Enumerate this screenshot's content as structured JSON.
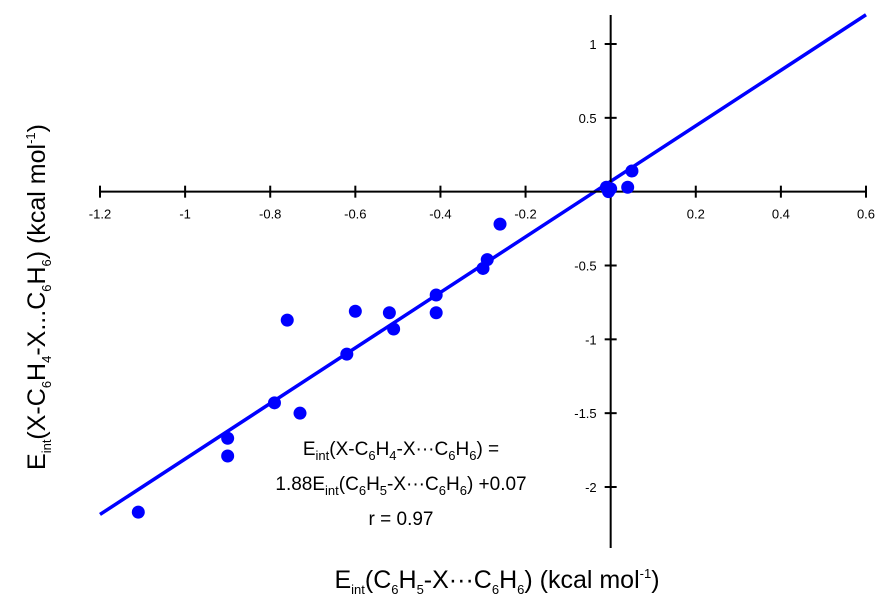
{
  "colors": {
    "series": "#0000ff",
    "axes": "#000000",
    "background": "#ffffff"
  },
  "chart_data": {
    "type": "scatter",
    "xlim": [
      -1.2,
      0.6
    ],
    "ylim": [
      -2.2,
      1.2
    ],
    "x_ticks": [
      -1.2,
      -1,
      -0.8,
      -0.6,
      -0.4,
      -0.2,
      0,
      0.2,
      0.4,
      0.6
    ],
    "x_tick_labels": [
      "-1.2",
      "-1",
      "-0.8",
      "-0.6",
      "-0.4",
      "-0.2",
      "",
      "0.2",
      "0.4",
      "0.6"
    ],
    "y_ticks": [
      -2,
      -1.5,
      -1,
      -0.5,
      0.5,
      1
    ],
    "y_tick_labels": [
      "-2",
      "-1.5",
      "-1",
      "-0.5",
      "0.5",
      "1"
    ],
    "grid": false,
    "xlabel": {
      "p1": "E",
      "p1_sub": "int",
      "p2": "(C",
      "p2_sub": "6",
      "p3": "H",
      "p3_sub": "5",
      "p4": "-X···C",
      "p4_sub": "6",
      "p5": "H",
      "p5_sub": "6",
      "p6": ") (kcal mol",
      "p6_sup": "-1",
      "p7": ")"
    },
    "ylabel": {
      "p1": "E",
      "p1_sub": "int",
      "p2": "(X-C",
      "p2_sub": "6",
      "p3": "H",
      "p3_sub": "4",
      "p4": "-X...C",
      "p4_sub": "6",
      "p5": "H",
      "p5_sub": "6",
      "p6": ") (kcal mol",
      "p6_sup": "-1",
      "p7": ")"
    },
    "annotation": {
      "line1": {
        "p1": "E",
        "p1_sub": "int",
        "p2": "(X-C",
        "p2_sub": "6",
        "p3": "H",
        "p3_sub": "4",
        "p4": "-X···C",
        "p4_sub": "6",
        "p5": "H",
        "p5_sub": "6",
        "p6": ") ="
      },
      "line2": {
        "p1": "1.88E",
        "p1_sub": "int",
        "p2": "(C",
        "p2_sub": "6",
        "p3": "H",
        "p3_sub": "5",
        "p4": "-X···C",
        "p4_sub": "6",
        "p5": "H",
        "p5_sub": "6",
        "p6": ") +0.07"
      },
      "line3": "r = 0.97"
    },
    "fit": {
      "slope": 1.88,
      "intercept": 0.07,
      "x_range": [
        -1.2,
        0.6
      ]
    },
    "series": [
      {
        "points": [
          [
            -1.11,
            -2.17
          ],
          [
            -0.9,
            -1.67
          ],
          [
            -0.9,
            -1.79
          ],
          [
            -0.79,
            -1.43
          ],
          [
            -0.76,
            -0.87
          ],
          [
            -0.73,
            -1.5
          ],
          [
            -0.62,
            -1.1
          ],
          [
            -0.6,
            -0.81
          ],
          [
            -0.52,
            -0.82
          ],
          [
            -0.51,
            -0.93
          ],
          [
            -0.41,
            -0.7
          ],
          [
            -0.41,
            -0.82
          ],
          [
            -0.3,
            -0.52
          ],
          [
            -0.29,
            -0.46
          ],
          [
            -0.26,
            -0.22
          ],
          [
            -0.01,
            0.03
          ],
          [
            -0.005,
            0.0
          ],
          [
            0.0,
            0.02
          ],
          [
            0.04,
            0.03
          ],
          [
            0.05,
            0.14
          ]
        ]
      }
    ]
  }
}
